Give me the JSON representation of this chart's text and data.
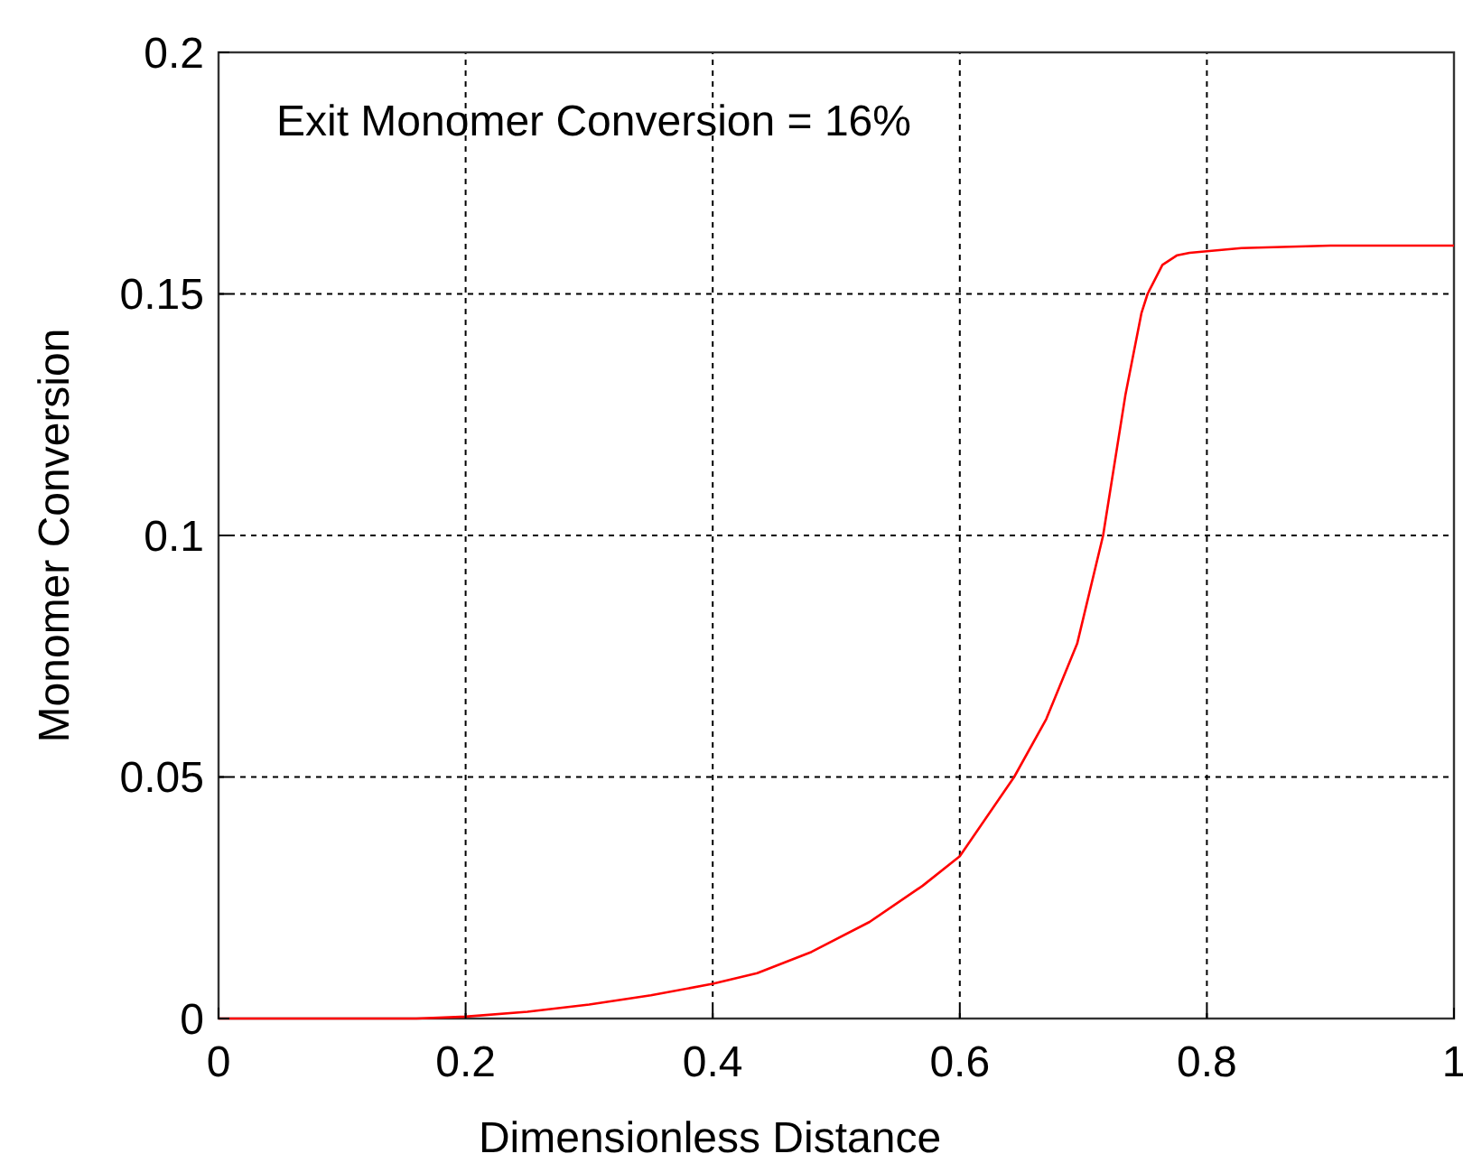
{
  "chart_data": {
    "type": "line",
    "xlabel": "Dimensionless Distance",
    "ylabel": "Monomer Conversion",
    "annotations": [
      "Exit Monomer Conversion = 16%"
    ],
    "x": [
      0,
      0.16,
      0.2,
      0.25,
      0.3,
      0.35,
      0.4,
      0.436,
      0.48,
      0.527,
      0.57,
      0.6,
      0.644,
      0.67,
      0.695,
      0.716,
      0.734,
      0.747,
      0.752,
      0.764,
      0.776,
      0.786,
      0.828,
      0.9,
      1.0
    ],
    "series": [
      {
        "color": "#ff0000",
        "values": [
          0,
          0,
          0.0004,
          0.0014,
          0.0029,
          0.0048,
          0.0072,
          0.0094,
          0.0138,
          0.02,
          0.0275,
          0.0336,
          0.05,
          0.062,
          0.0776,
          0.1,
          0.129,
          0.146,
          0.15,
          0.156,
          0.158,
          0.1585,
          0.1595,
          0.16,
          0.16
        ]
      }
    ],
    "xlim": [
      0,
      1
    ],
    "ylim": [
      0,
      0.2
    ],
    "xticks": [
      0,
      0.2,
      0.4,
      0.6,
      0.8,
      1
    ],
    "yticks": [
      0,
      0.05,
      0.1,
      0.15,
      0.2
    ],
    "grid": true,
    "marker": "none",
    "line_style": "solid"
  }
}
